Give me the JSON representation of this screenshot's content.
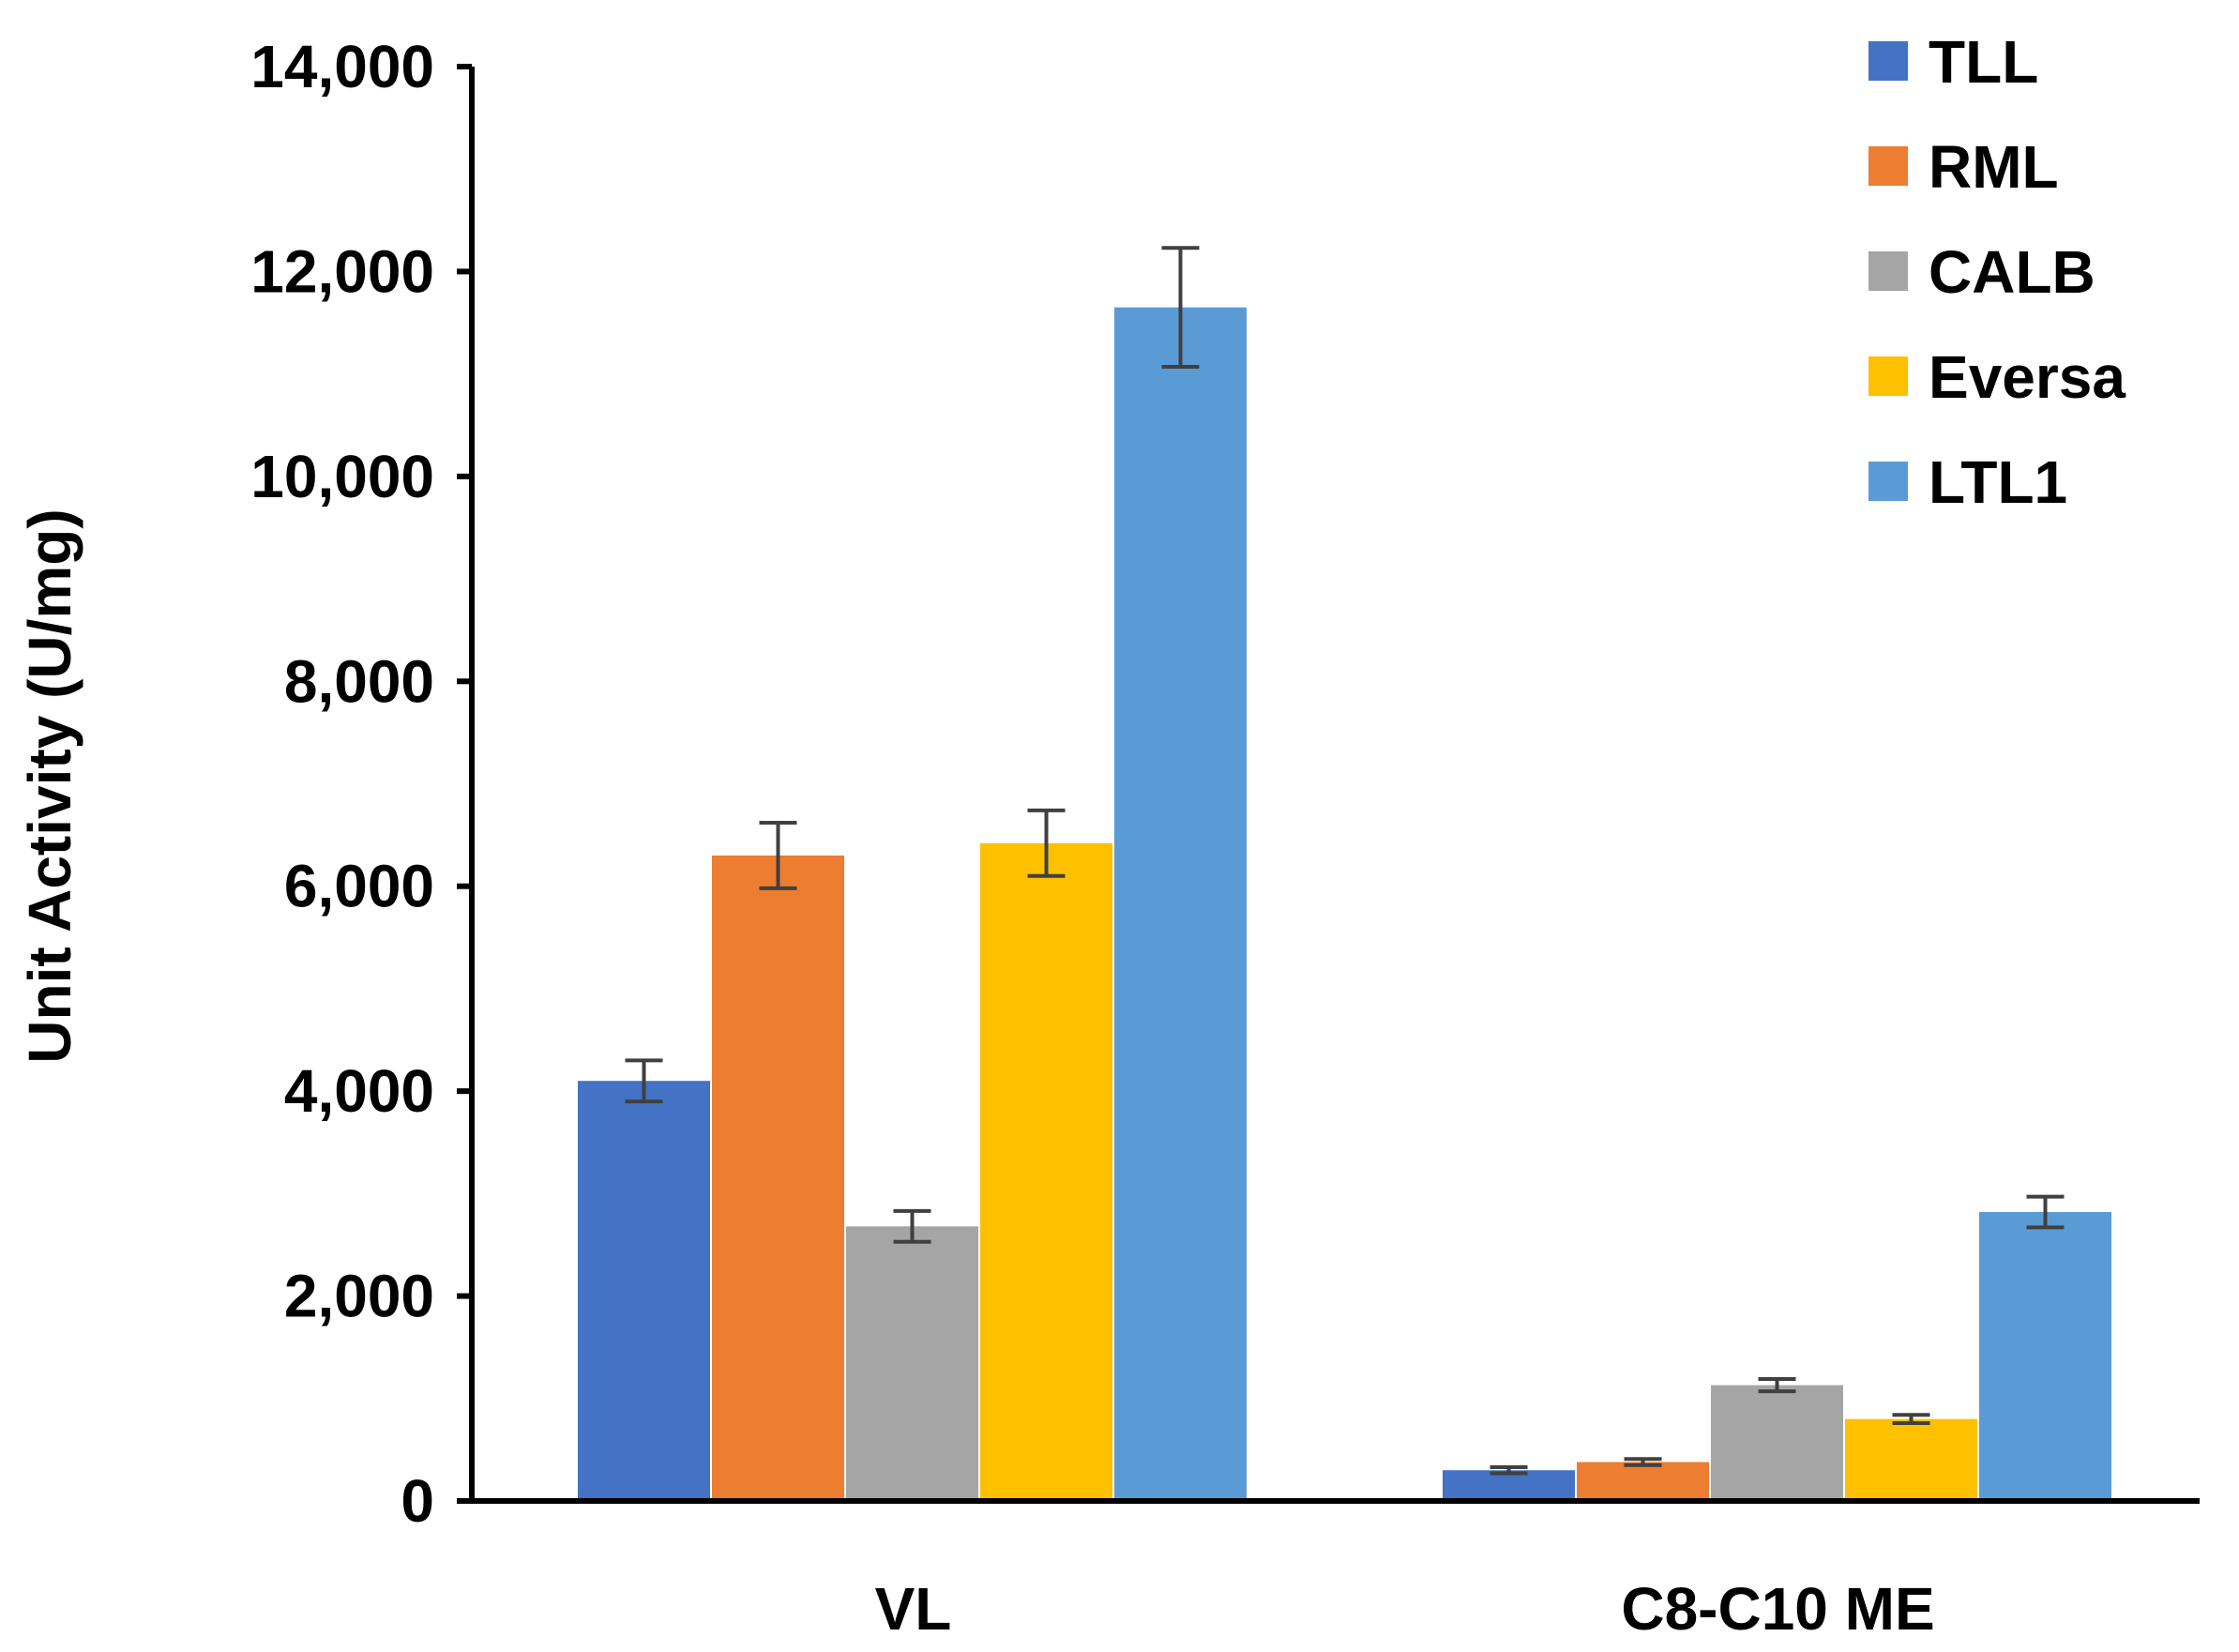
{
  "chart_data": {
    "type": "bar",
    "title": "",
    "xlabel": "",
    "ylabel": "Unit Activity (U/mg)",
    "ylim": [
      0,
      14000
    ],
    "yticks": [
      0,
      2000,
      4000,
      6000,
      8000,
      10000,
      12000,
      14000
    ],
    "ytick_labels": [
      "0",
      "2,000",
      "4,000",
      "6,000",
      "8,000",
      "10,000",
      "12,000",
      "14,000"
    ],
    "grid": false,
    "legend_position": "top-right",
    "categories": [
      "VL",
      "C8-C10 ME"
    ],
    "series": [
      {
        "name": "TLL",
        "color": "#4472C4",
        "values": [
          4100,
          300
        ],
        "errors": [
          200,
          30
        ]
      },
      {
        "name": "RML",
        "color": "#ED7D31",
        "values": [
          6300,
          380
        ],
        "errors": [
          320,
          30
        ]
      },
      {
        "name": "CALB",
        "color": "#A5A5A5",
        "values": [
          2680,
          1130
        ],
        "errors": [
          150,
          60
        ]
      },
      {
        "name": "Eversa",
        "color": "#FFC000",
        "values": [
          6420,
          800
        ],
        "errors": [
          320,
          40
        ]
      },
      {
        "name": "LTL1",
        "color": "#5B9BD5",
        "values": [
          11650,
          2820
        ],
        "errors": [
          580,
          150
        ]
      }
    ]
  }
}
